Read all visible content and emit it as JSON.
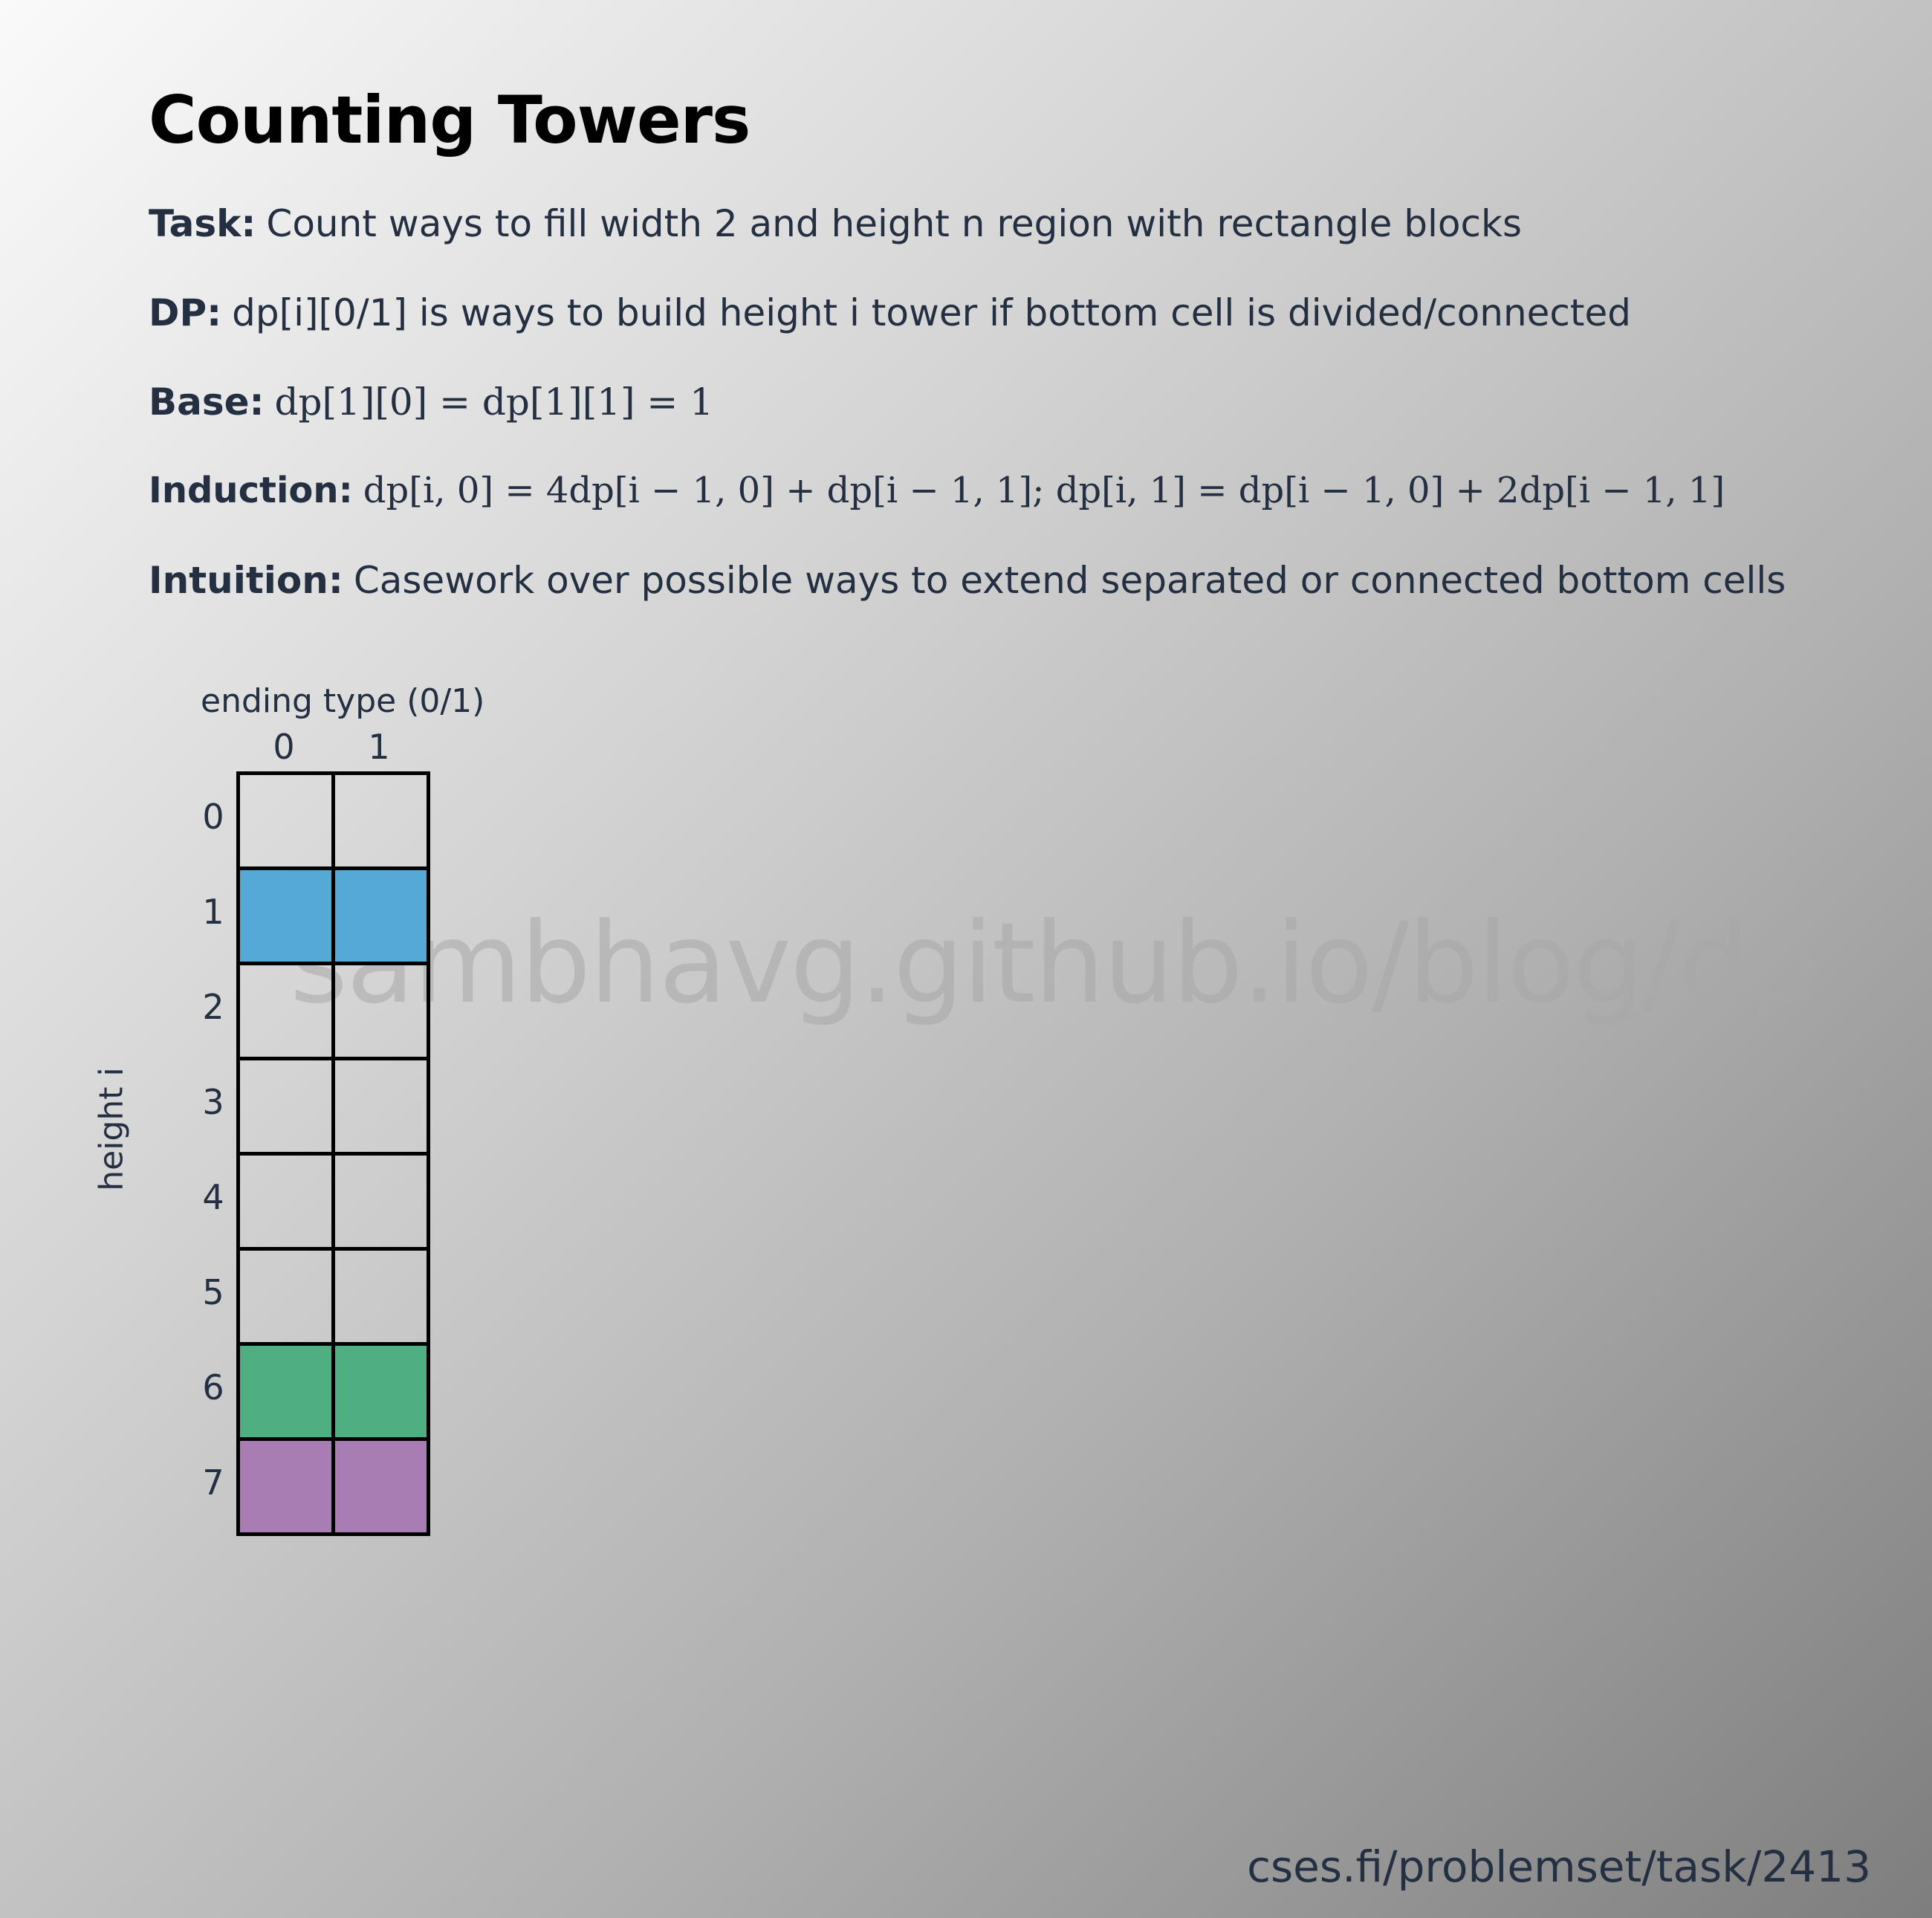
{
  "title": "Counting Towers",
  "lines": {
    "task": {
      "label": "Task:",
      "text": "Count ways to fill width 2 and height n region with rectangle blocks"
    },
    "dp": {
      "label": "DP:",
      "text": "dp[i][0/1] is ways to build height i tower if bottom cell is divided/connected"
    },
    "base": {
      "label": "Base:",
      "text": "dp[1][0] = dp[1][1] = 1"
    },
    "induction": {
      "label": "Induction:",
      "text": "dp[i, 0] = 4dp[i − 1, 0] + dp[i − 1, 1]; dp[i, 1] = dp[i − 1, 0] + 2dp[i − 1, 1]"
    },
    "intuition": {
      "label": "Intuition:",
      "text": "Casework over possible ways to extend separated or connected bottom cells"
    }
  },
  "table": {
    "column_title": "ending type (0/1)",
    "row_title": "height i",
    "columns": [
      "0",
      "1"
    ],
    "rows": [
      "0",
      "1",
      "2",
      "3",
      "4",
      "5",
      "6",
      "7"
    ],
    "row_colors": [
      "none",
      "#55a9d6",
      "none",
      "none",
      "none",
      "none",
      "#4faf83",
      "#a87db3"
    ]
  },
  "watermark": "sambhavg.github.io/blog/dp",
  "footer": "cses.fi/problemset/task/2413"
}
